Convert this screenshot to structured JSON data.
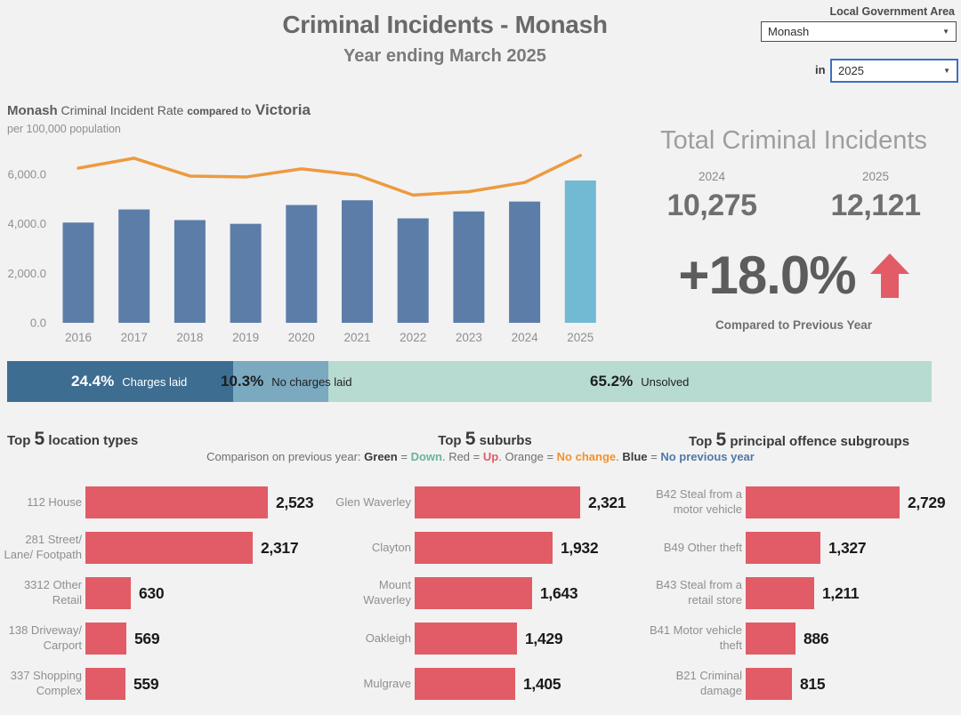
{
  "header": {
    "title": "Criminal Incidents - Monash",
    "subtitle": "Year ending March 2025",
    "lga_label": "Local Government Area",
    "lga_value": "Monash",
    "in_label": "in",
    "year_value": "2025"
  },
  "trend": {
    "lga": "Monash",
    "measure": " Criminal Incident Rate ",
    "compared": "compared to",
    "state": " Victoria",
    "subtitle": "per 100,000 population",
    "lga_color": "#4e79a7",
    "state_color": "#f0932e"
  },
  "totals": {
    "title": "Total Criminal Incidents",
    "year_prev": "2024",
    "year_curr": "2025",
    "value_prev": "10,275",
    "value_curr": "12,121",
    "change": "+18.0%",
    "change_caption": "Compared to Previous Year",
    "arrow_color": "#e15c66"
  },
  "sections": {
    "headers": [
      {
        "pre": "Top ",
        "num": "5",
        "post": " location types"
      },
      {
        "pre": "Top ",
        "num": "5",
        "post": " suburbs"
      },
      {
        "pre": "Top ",
        "num": "5",
        "post": " principal offence subgroups"
      }
    ]
  },
  "legend": {
    "prefix": "Comparison on previous year: ",
    "equals": " = ",
    "separator": ". ",
    "items": [
      {
        "term": "Green",
        "term_bold": true,
        "term_color": "#3b3b3b",
        "result": "Down",
        "result_color": "#69b59b"
      },
      {
        "term": "Red",
        "term_bold": false,
        "term_color": "#6e6e6e",
        "result": "Up",
        "result_color": "#e15c66"
      },
      {
        "term": "Orange",
        "term_bold": false,
        "term_color": "#6e6e6e",
        "result": "No change",
        "result_color": "#f0932e"
      },
      {
        "term": "Blue",
        "term_bold": true,
        "term_color": "#3b3b3b",
        "result": "No previous year",
        "result_color": "#4e79a7"
      }
    ]
  },
  "chart_data": [
    {
      "type": "bar+line",
      "title": "Monash Criminal Incident Rate compared to Victoria, per 100,000 population",
      "categories": [
        "2016",
        "2017",
        "2018",
        "2019",
        "2020",
        "2021",
        "2022",
        "2023",
        "2024",
        "2025"
      ],
      "series": [
        {
          "name": "Monash incident rate",
          "type": "bar",
          "values": [
            4050,
            4580,
            4150,
            4000,
            4760,
            4950,
            4220,
            4500,
            4900,
            5750
          ]
        },
        {
          "name": "Victoria incident rate",
          "type": "line",
          "values": [
            6250,
            6650,
            5930,
            5890,
            6220,
            5970,
            5160,
            5300,
            5670,
            6760
          ]
        }
      ],
      "ylim": [
        0,
        7300
      ],
      "yticks": [
        {
          "v": 0,
          "label": "0.0"
        },
        {
          "v": 2000,
          "label": "2,000.0"
        },
        {
          "v": 4000,
          "label": "4,000.0"
        },
        {
          "v": 6000,
          "label": "6,000.0"
        }
      ],
      "grid": false,
      "bar_color": "#5b7da8",
      "bar_highlight_color": "#72b9d4",
      "highlight_index": 9,
      "line_color": "#ed9a40"
    },
    {
      "type": "stacked_bar",
      "title": "Investigation status",
      "segments": [
        {
          "pct_label": "24.4%",
          "label": "Charges laid",
          "pct": 24.4,
          "color": "#3e6d92",
          "text_color": "#ffffff"
        },
        {
          "pct_label": "10.3%",
          "label": "No charges laid",
          "pct": 10.3,
          "color": "#7aa9c0",
          "text_color": "#1e1e1e"
        },
        {
          "pct_label": "65.2%",
          "label": "Unsolved",
          "pct": 65.2,
          "color": "#b7dbd1",
          "text_color": "#1e1e1e"
        }
      ]
    },
    {
      "type": "bar",
      "orientation": "horizontal",
      "title": "Top 5 location types",
      "categories": [
        "112 House",
        "281 Street/\nLane/ Footpath",
        "3312 Other\nRetail",
        "138 Driveway/\nCarport",
        "337 Shopping\nComplex"
      ],
      "values": [
        2523,
        2317,
        630,
        569,
        559
      ],
      "value_labels": [
        "2,523",
        "2,317",
        "630",
        "569",
        "559"
      ],
      "bar_color": "#e15c66"
    },
    {
      "type": "bar",
      "orientation": "horizontal",
      "title": "Top 5 suburbs",
      "categories": [
        "Glen Waverley",
        "Clayton",
        "Mount\nWaverley",
        "Oakleigh",
        "Mulgrave"
      ],
      "values": [
        2321,
        1932,
        1643,
        1429,
        1405
      ],
      "value_labels": [
        "2,321",
        "1,932",
        "1,643",
        "1,429",
        "1,405"
      ],
      "bar_color": "#e15c66"
    },
    {
      "type": "bar",
      "orientation": "horizontal",
      "title": "Top 5 principal offence subgroups",
      "categories": [
        "B42 Steal from a\nmotor vehicle",
        "B49 Other theft",
        "B43 Steal from a\nretail store",
        "B41 Motor vehicle\ntheft",
        "B21 Criminal\ndamage"
      ],
      "values": [
        2729,
        1327,
        1211,
        886,
        815
      ],
      "value_labels": [
        "2,729",
        "1,327",
        "1,211",
        "886",
        "815"
      ],
      "bar_color": "#e15c66"
    }
  ]
}
